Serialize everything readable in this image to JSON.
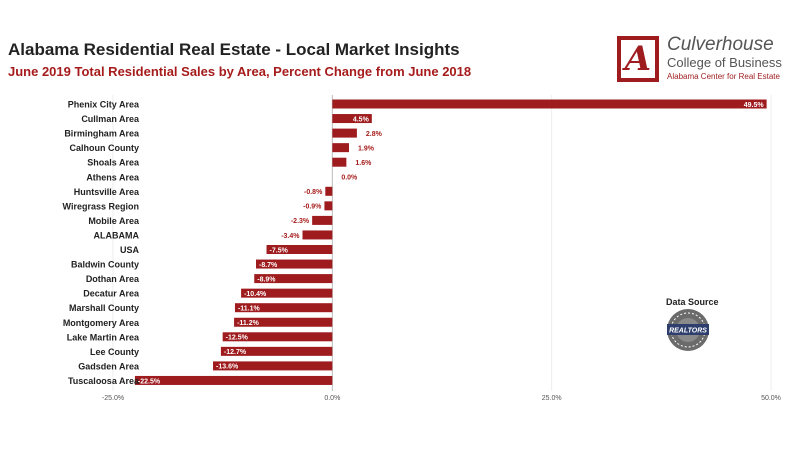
{
  "header": {
    "title": "Alabama Residential Real Estate - Local Market Insights",
    "subtitle": "June 2019 Total Residential Sales by Area, Percent Change from June 2018"
  },
  "logo": {
    "letter": "A",
    "name": "Culverhouse",
    "college": "College of Business",
    "center": "Alabama Center for Real Estate"
  },
  "source": {
    "label": "Data Source",
    "badge_text": "REALTORS",
    "icon": "realtors-seal-icon"
  },
  "colors": {
    "bar": "#9e1b1e",
    "accent": "#a61c1c",
    "label_text": "#222222"
  },
  "chart_data": {
    "type": "bar",
    "orientation": "horizontal",
    "categories": [
      "Phenix City Area",
      "Cullman Area",
      "Birmingham Area",
      "Calhoun County",
      "Shoals Area",
      "Athens Area",
      "Huntsville Area",
      "Wiregrass Region",
      "Mobile Area",
      "ALABAMA",
      "USA",
      "Baldwin County",
      "Dothan Area",
      "Decatur Area",
      "Marshall County",
      "Montgomery Area",
      "Lake Martin Area",
      "Lee County",
      "Gadsden Area",
      "Tuscaloosa Area"
    ],
    "values": [
      49.5,
      4.5,
      2.8,
      1.9,
      1.6,
      0.0,
      -0.8,
      -0.9,
      -2.3,
      -3.4,
      -7.5,
      -8.7,
      -8.9,
      -10.4,
      -11.1,
      -11.2,
      -12.5,
      -12.7,
      -13.6,
      -22.5
    ],
    "value_labels": [
      "49.5%",
      "4.5%",
      "2.8%",
      "1.9%",
      "1.6%",
      "0.0%",
      "-0.8%",
      "-0.9%",
      "-2.3%",
      "-3.4%",
      "-7.5%",
      "-8.7%",
      "-8.9%",
      "-10.4%",
      "-11.1%",
      "-11.2%",
      "-12.5%",
      "-12.7%",
      "-13.6%",
      "-22.5%"
    ],
    "xlim": [
      -25,
      50
    ],
    "ticks": [
      -25,
      0,
      25,
      50
    ],
    "tick_labels": [
      "-25.0%",
      "0.0%",
      "25.0%",
      "50.0%"
    ],
    "grid": true,
    "legend": "none"
  }
}
